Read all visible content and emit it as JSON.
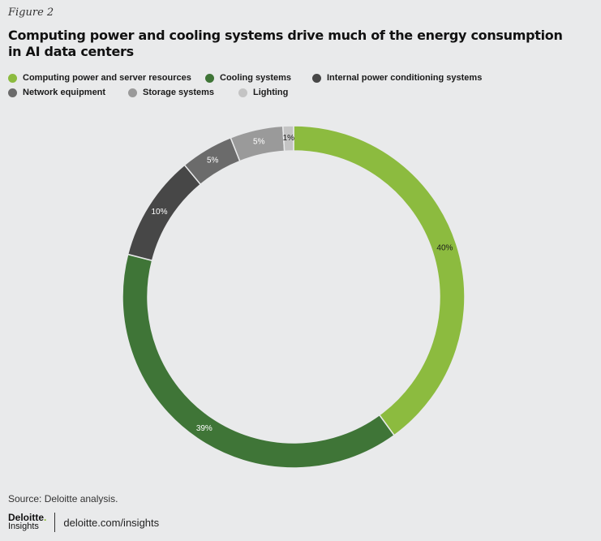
{
  "figure_label": "Figure 2",
  "source": "Source: Deloitte analysis.",
  "footer": {
    "logo_top": "Deloitte",
    "logo_dot": ".",
    "logo_bottom": "Insights",
    "url": "deloitte.com/insights"
  },
  "chart_data": {
    "type": "pie",
    "title": "Computing power and cooling systems drive much of the energy consumption in AI data centers",
    "categories": [
      "Computing power and server resources",
      "Cooling systems",
      "Internal power conditioning systems",
      "Network equipment",
      "Storage systems",
      "Lighting"
    ],
    "values": [
      40,
      39,
      10,
      5,
      5,
      1
    ],
    "labels": [
      "40%",
      "39%",
      "10%",
      "5%",
      "5%",
      "1%"
    ],
    "colors": [
      "#8cbb3f",
      "#3f7537",
      "#474747",
      "#6b6b6b",
      "#9a9a9a",
      "#c4c4c4"
    ],
    "label_colors": [
      "#1a1a1a",
      "#ffffff",
      "#ffffff",
      "#ffffff",
      "#ffffff",
      "#1a1a1a"
    ],
    "style": "donut",
    "legend_position": "top-left"
  }
}
